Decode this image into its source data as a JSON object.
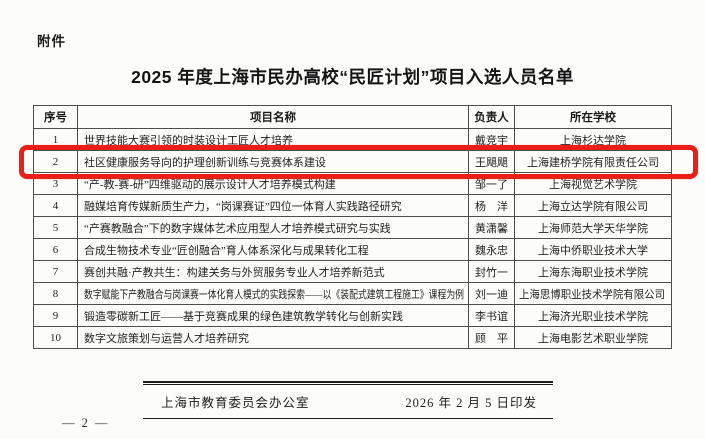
{
  "page": {
    "attachment_label": "附件",
    "title": "2025 年度上海市民办高校“民匠计划”项目入选人员名单",
    "page_number": "— 2 —"
  },
  "table": {
    "headers": [
      "序号",
      "项目名称",
      "负责人",
      "所在学校"
    ],
    "rows": [
      {
        "no": "1",
        "project": "世界技能大赛引领的时装设计工匠人才培养",
        "leader": "戴竞宇",
        "school": "上海杉达学院",
        "highlighted": false
      },
      {
        "no": "2",
        "project": "社区健康服务导向的护理创新训练与竞赛体系建设",
        "leader": "王飓飓",
        "school": "上海建桥学院有限责任公司",
        "highlighted": true
      },
      {
        "no": "3",
        "project": "“产-教-赛-研”四维驱动的展示设计人才培养模式构建",
        "leader": "邹一了",
        "school": "上海视觉艺术学院",
        "highlighted": false
      },
      {
        "no": "4",
        "project": "融媒培育传媒新质生产力，“岗课赛证”四位一体育人实践路径研究",
        "leader": "杨　洋",
        "school": "上海立达学院有限公司",
        "highlighted": false
      },
      {
        "no": "5",
        "project": "“产赛教融合”下的数字媒体艺术应用型人才培养模式研究与实践",
        "leader": "黄潇馨",
        "school": "上海师范大学天华学院",
        "highlighted": false
      },
      {
        "no": "6",
        "project": "合成生物技术专业“匠创融合”育人体系深化与成果转化工程",
        "leader": "魏永忠",
        "school": "上海中侨职业技术大学",
        "highlighted": false
      },
      {
        "no": "7",
        "project": "赛创共融·产教共生：构建关务与外贸服务专业人才培养新范式",
        "leader": "封竹一",
        "school": "上海东海职业技术学院",
        "highlighted": false
      },
      {
        "no": "8",
        "project": "数字赋能下产教融合与岗课赛一体化育人模式的实践探索——以《装配式建筑工程施工》课程为例",
        "leader": "刘一迪",
        "school": "上海思博职业技术学院有限公司",
        "highlighted": false
      },
      {
        "no": "9",
        "project": "锻造零碳新工匠——基于竞赛成果的绿色建筑教学转化与创新实践",
        "leader": "李书谊",
        "school": "上海济光职业技术学院",
        "highlighted": false
      },
      {
        "no": "10",
        "project": "数字文旅策划与运营人才培养研究",
        "leader": "顾　平",
        "school": "上海电影艺术职业学院",
        "highlighted": false
      }
    ]
  },
  "footer": {
    "issuer": "上海市教育委员会办公室",
    "print_date": "2026 年 2 月 5 日印发"
  },
  "highlight": {
    "color": "#ea1f17"
  }
}
